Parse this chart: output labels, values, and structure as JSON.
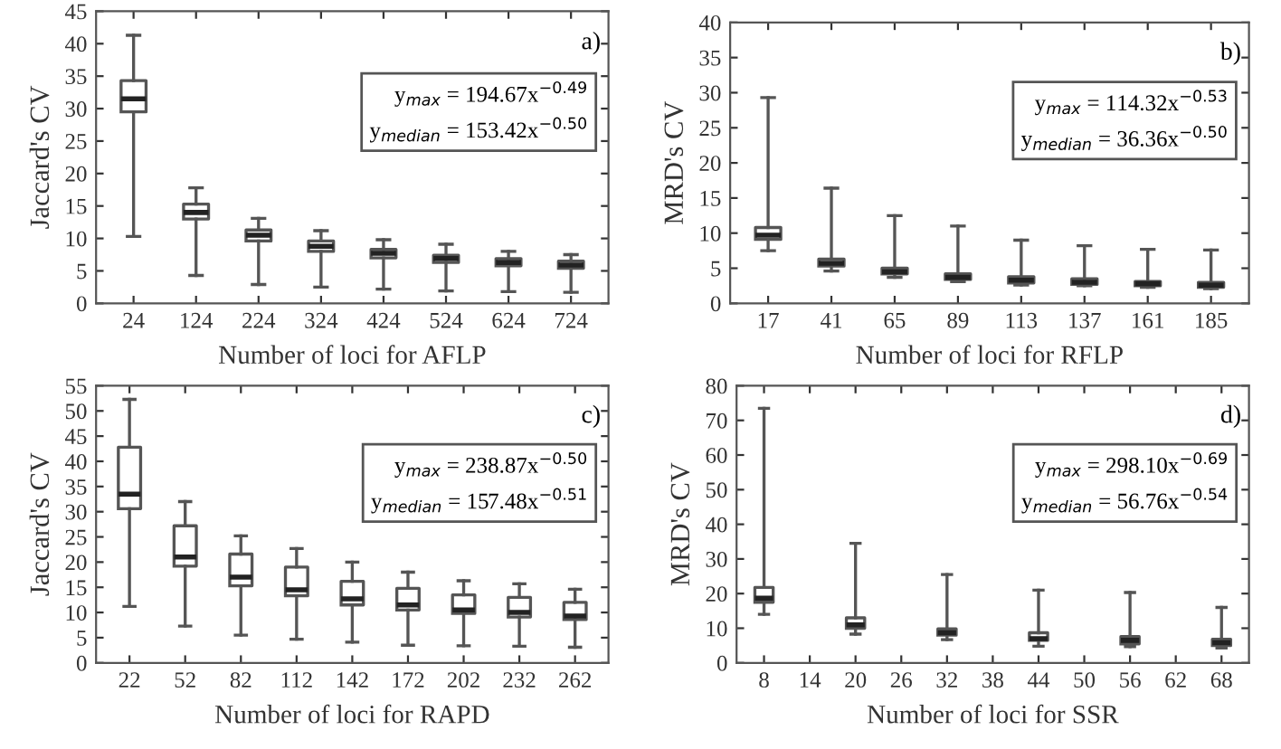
{
  "chart_data": [
    {
      "type": "box",
      "ylabel": "Jaccard's CV",
      "xlabel": "Number of loci for AFLP",
      "categories": [
        "24",
        "124",
        "224",
        "324",
        "424",
        "524",
        "624",
        "724"
      ],
      "ylim": [
        0,
        45
      ],
      "yticks": [
        0,
        5,
        10,
        15,
        20,
        25,
        30,
        35,
        40,
        45
      ],
      "grid": false,
      "color": "#555555",
      "annotations": [
        "a)",
        "y$_{max}$ = 194.67x$^{−0.49}$",
        "y$_{median}$ = 153.42x$^{−0.50}$"
      ],
      "boxes": [
        {
          "low": 10.3,
          "q1": 29.5,
          "median": 31.5,
          "q3": 34.3,
          "high": 41.3
        },
        {
          "low": 4.3,
          "q1": 13,
          "median": 14,
          "q3": 15.3,
          "high": 17.8
        },
        {
          "low": 2.9,
          "q1": 9.6,
          "median": 10.5,
          "q3": 11.3,
          "high": 13.1
        },
        {
          "low": 2.5,
          "q1": 8,
          "median": 8.8,
          "q3": 9.6,
          "high": 11.2
        },
        {
          "low": 2.2,
          "q1": 7,
          "median": 7.7,
          "q3": 8.3,
          "high": 9.8
        },
        {
          "low": 1.9,
          "q1": 6.3,
          "median": 6.9,
          "q3": 7.4,
          "high": 9.1
        },
        {
          "low": 1.8,
          "q1": 5.8,
          "median": 6.3,
          "q3": 6.9,
          "high": 8
        },
        {
          "low": 1.7,
          "q1": 5.4,
          "median": 5.9,
          "q3": 6.5,
          "high": 7.5
        }
      ]
    },
    {
      "type": "box",
      "ylabel": "MRD's CV",
      "xlabel": "Number of loci for RFLP",
      "categories": [
        "17",
        "41",
        "65",
        "89",
        "113",
        "137",
        "161",
        "185"
      ],
      "ylim": [
        0,
        40
      ],
      "yticks": [
        0,
        5,
        10,
        15,
        20,
        25,
        30,
        35,
        40
      ],
      "grid": false,
      "color": "#555555",
      "annotations": [
        "b)",
        "y$_{max}$ = 114.32x$^{−0.53}$",
        "y$_{median}$ = 36.36x$^{−0.50}$"
      ],
      "boxes": [
        {
          "low": 7.5,
          "q1": 9.1,
          "median": 9.7,
          "q3": 10.8,
          "high": 29.3
        },
        {
          "low": 4.6,
          "q1": 5.3,
          "median": 5.7,
          "q3": 6.3,
          "high": 16.4
        },
        {
          "low": 3.7,
          "q1": 4.2,
          "median": 4.5,
          "q3": 5.0,
          "high": 12.5
        },
        {
          "low": 3.1,
          "q1": 3.4,
          "median": 3.7,
          "q3": 4.2,
          "high": 11
        },
        {
          "low": 2.6,
          "q1": 2.9,
          "median": 3.3,
          "q3": 3.8,
          "high": 9
        },
        {
          "low": 2.5,
          "q1": 2.7,
          "median": 3.0,
          "q3": 3.5,
          "high": 8.2
        },
        {
          "low": 2.3,
          "q1": 2.5,
          "median": 2.8,
          "q3": 3.1,
          "high": 7.7
        },
        {
          "low": 2.1,
          "q1": 2.3,
          "median": 2.6,
          "q3": 3.0,
          "high": 7.6
        }
      ]
    },
    {
      "type": "box",
      "ylabel": "Jaccard's CV",
      "xlabel": "Number of loci for RAPD",
      "categories": [
        "22",
        "52",
        "82",
        "112",
        "142",
        "172",
        "202",
        "232",
        "262"
      ],
      "ylim": [
        0,
        55
      ],
      "yticks": [
        0,
        5,
        10,
        15,
        20,
        25,
        30,
        35,
        40,
        45,
        50,
        55
      ],
      "grid": false,
      "color": "#555555",
      "annotations": [
        "c)",
        "y$_{max}$ = 238.87x$^{−0.50}$",
        "y$_{median}$ = 157.48x$^{−0.51}$"
      ],
      "boxes": [
        {
          "low": 11.2,
          "q1": 30.6,
          "median": 33.5,
          "q3": 42.8,
          "high": 52.3
        },
        {
          "low": 7.3,
          "q1": 19.2,
          "median": 21,
          "q3": 27.2,
          "high": 32
        },
        {
          "low": 5.5,
          "q1": 15.3,
          "median": 17,
          "q3": 21.6,
          "high": 25.2
        },
        {
          "low": 4.7,
          "q1": 13.3,
          "median": 14.5,
          "q3": 19,
          "high": 22.7
        },
        {
          "low": 4.1,
          "q1": 11.5,
          "median": 12.7,
          "q3": 16.2,
          "high": 20
        },
        {
          "low": 3.5,
          "q1": 10.5,
          "median": 11.5,
          "q3": 14.8,
          "high": 18
        },
        {
          "low": 3.4,
          "q1": 9.8,
          "median": 10.5,
          "q3": 13.5,
          "high": 16.3
        },
        {
          "low": 3.3,
          "q1": 9.1,
          "median": 10,
          "q3": 13,
          "high": 15.7
        },
        {
          "low": 3.1,
          "q1": 8.6,
          "median": 9.3,
          "q3": 12,
          "high": 14.6
        }
      ]
    },
    {
      "type": "box",
      "ylabel": "MRD's CV",
      "xlabel": "Number of loci for SSR",
      "categories": [
        "8",
        "14",
        "20",
        "26",
        "32",
        "38",
        "44",
        "50",
        "56",
        "62",
        "68"
      ],
      "ylim": [
        0,
        80
      ],
      "yticks": [
        0,
        10,
        20,
        30,
        40,
        50,
        60,
        70,
        80
      ],
      "grid": false,
      "color": "#555555",
      "annotations": [
        "d)",
        "y$_{max}$ = 298.10x$^{−0.69}$",
        "y$_{median}$ = 56.76x$^{−0.54}$"
      ],
      "boxes": [
        {
          "low": 14,
          "q1": 17.5,
          "median": 18.7,
          "q3": 21.8,
          "high": 73.5
        },
        null,
        {
          "low": 8.3,
          "q1": 10,
          "median": 11,
          "q3": 13,
          "high": 34.5
        },
        null,
        {
          "low": 6.7,
          "q1": 8,
          "median": 8.7,
          "q3": 9.8,
          "high": 25.5
        },
        null,
        {
          "low": 4.8,
          "q1": 6.5,
          "median": 7,
          "q3": 8.7,
          "high": 21
        },
        null,
        {
          "low": 4.7,
          "q1": 5.5,
          "median": 6.5,
          "q3": 7.6,
          "high": 20.3
        },
        null,
        {
          "low": 4.3,
          "q1": 5,
          "median": 5.8,
          "q3": 6.8,
          "high": 16
        }
      ]
    }
  ]
}
